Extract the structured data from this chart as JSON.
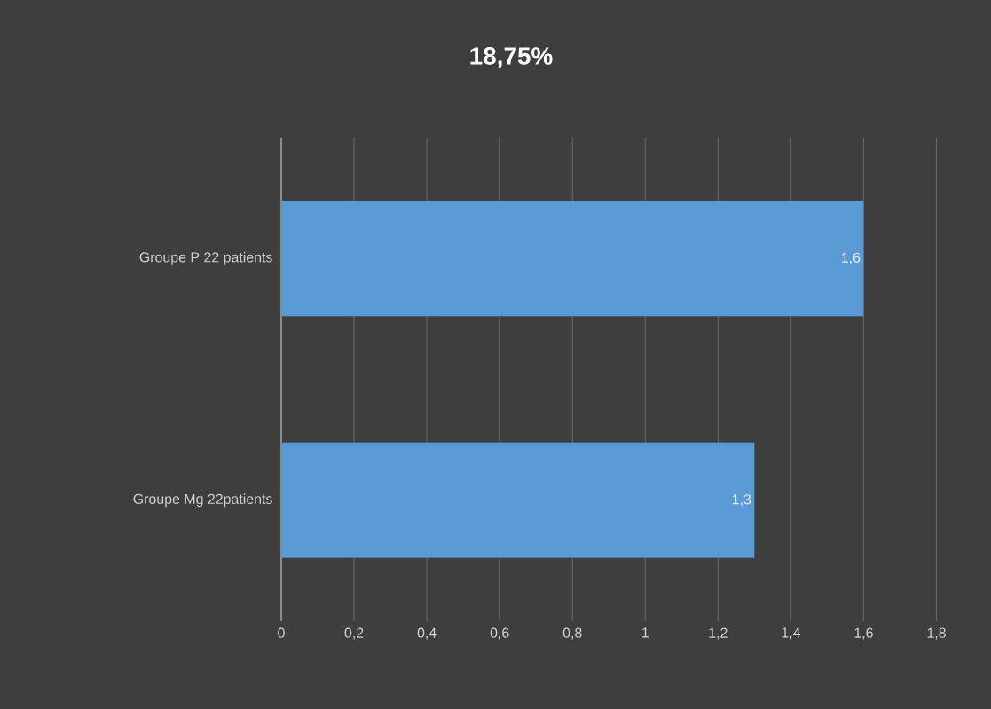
{
  "chart_data": {
    "type": "bar",
    "orientation": "horizontal",
    "title": "18,75%",
    "categories": [
      "Groupe P 22 patients",
      "Groupe Mg 22patients"
    ],
    "values": [
      1.6,
      1.3
    ],
    "value_labels": [
      "1,6",
      "1,3"
    ],
    "color": "#5b9bd5",
    "xlim": [
      0,
      1.95
    ],
    "xticks": [
      0,
      {
        "value": 0.2,
        "label": "0,2"
      },
      {
        "value": 0.4,
        "label": "0,4"
      },
      {
        "value": 0.6,
        "label": "0,6"
      },
      {
        "value": 0.8,
        "label": "0,8"
      },
      1,
      {
        "value": 1.2,
        "label": "1,2"
      },
      {
        "value": 1.4,
        "label": "1,4"
      },
      {
        "value": 1.6,
        "label": "1,6"
      },
      {
        "value": 1.8,
        "label": "1,8"
      }
    ],
    "grid": "x"
  }
}
